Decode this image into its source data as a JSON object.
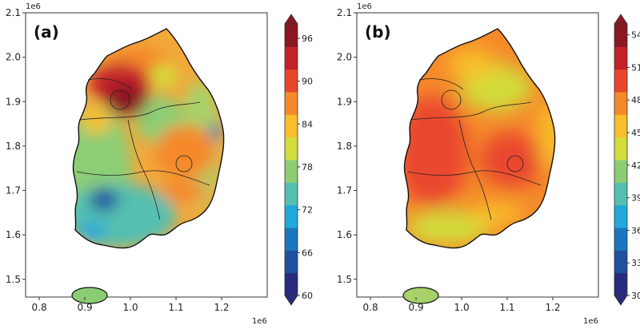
{
  "chart_data": [
    {
      "type": "heatmap",
      "panel_label": "(a)",
      "xlim": [
        0.77,
        1.3
      ],
      "ylim": [
        1.46,
        2.1
      ],
      "x_ticks": [
        "0.8",
        "0.9",
        "1.0",
        "1.1",
        "1.2"
      ],
      "y_ticks": [
        "1.5",
        "1.6",
        "1.7",
        "1.8",
        "1.9",
        "2.0",
        "2.1"
      ],
      "x_offset_label": "1e6",
      "y_offset_label": "1e6",
      "colorbar": {
        "min": 60,
        "max": 98,
        "ticks": [
          "60",
          "66",
          "72",
          "78",
          "84",
          "90",
          "96"
        ],
        "colormap": [
          "#272a7d",
          "#1f4f9f",
          "#1c76bf",
          "#21a8dc",
          "#55bfb1",
          "#8ccd74",
          "#d2dd3b",
          "#f7bf2a",
          "#f5892a",
          "#e9472d",
          "#c52129",
          "#8a1722"
        ]
      },
      "hotspots": [
        {
          "x": 0.965,
          "y": 1.915,
          "value": 98
        },
        {
          "x": 0.93,
          "y": 1.95,
          "value": 96
        },
        {
          "x": 1.0,
          "y": 1.86,
          "value": 92
        },
        {
          "x": 1.09,
          "y": 1.8,
          "value": 91
        },
        {
          "x": 0.93,
          "y": 1.7,
          "value": 69
        },
        {
          "x": 0.91,
          "y": 1.63,
          "value": 73
        },
        {
          "x": 1.16,
          "y": 1.84,
          "value": 72
        },
        {
          "x": 1.08,
          "y": 1.97,
          "value": 84
        }
      ]
    },
    {
      "type": "heatmap",
      "panel_label": "(b)",
      "xlim": [
        0.77,
        1.3
      ],
      "ylim": [
        1.46,
        2.1
      ],
      "x_ticks": [
        "0.8",
        "0.9",
        "1.0",
        "1.1",
        "1.2"
      ],
      "y_ticks": [
        "1.5",
        "1.6",
        "1.7",
        "1.8",
        "1.9",
        "2.0",
        "2.1"
      ],
      "x_offset_label": "1e6",
      "y_offset_label": "1e6",
      "colorbar": {
        "min": 30,
        "max": 55,
        "ticks": [
          "30",
          "33",
          "36",
          "39",
          "42",
          "45",
          "48",
          "51",
          "54"
        ],
        "colormap": [
          "#272a7d",
          "#1f4f9f",
          "#1c76bf",
          "#21a8dc",
          "#55bfb1",
          "#8ccd74",
          "#d2dd3b",
          "#f7bf2a",
          "#f5892a",
          "#e9472d",
          "#c52129",
          "#8a1722"
        ]
      },
      "hotspots": [
        {
          "x": 0.87,
          "y": 1.84,
          "value": 52
        },
        {
          "x": 1.08,
          "y": 1.79,
          "value": 51
        },
        {
          "x": 1.04,
          "y": 1.93,
          "value": 45
        },
        {
          "x": 1.1,
          "y": 1.97,
          "value": 45
        },
        {
          "x": 0.92,
          "y": 1.6,
          "value": 45
        }
      ]
    }
  ]
}
